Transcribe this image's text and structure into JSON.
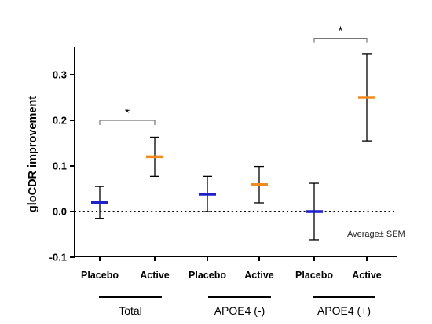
{
  "chart_data": {
    "type": "scatter",
    "title": "",
    "xlabel": "",
    "ylabel": "gloCDR improvement",
    "ylim": [
      -0.1,
      0.35
    ],
    "yticks": [
      "-0.1",
      "0.0",
      "0.1",
      "0.2",
      "0.3"
    ],
    "yticks_values": [
      -0.1,
      0.0,
      0.1,
      0.2,
      0.3
    ],
    "categories": [
      "Placebo",
      "Active",
      "Placebo",
      "Active",
      "Placebo",
      "Active"
    ],
    "groups": [
      "Total",
      "APOE4 (-)",
      "APOE4 (+)"
    ],
    "points": [
      {
        "group": "Total",
        "category": "Placebo",
        "mean": 0.02,
        "lower": -0.015,
        "upper": 0.055,
        "color": "#1f1fcc"
      },
      {
        "group": "Total",
        "category": "Active",
        "mean": 0.12,
        "lower": 0.077,
        "upper": 0.163,
        "color": "#f28a1e"
      },
      {
        "group": "APOE4 (-)",
        "category": "Placebo",
        "mean": 0.038,
        "lower": 0.0,
        "upper": 0.077,
        "color": "#1f1fcc"
      },
      {
        "group": "APOE4 (-)",
        "category": "Active",
        "mean": 0.059,
        "lower": 0.019,
        "upper": 0.099,
        "color": "#f28a1e"
      },
      {
        "group": "APOE4 (+)",
        "category": "Placebo",
        "mean": 0.0,
        "lower": -0.062,
        "upper": 0.062,
        "color": "#1f1fcc"
      },
      {
        "group": "APOE4 (+)",
        "category": "Active",
        "mean": 0.25,
        "lower": 0.155,
        "upper": 0.345,
        "color": "#f28a1e"
      }
    ],
    "reference_line": {
      "y": 0.0,
      "style": "dotted"
    },
    "annotation": "Average± SEM",
    "significance": [
      {
        "groups": "Total",
        "from": "Placebo",
        "to": "Active",
        "label": "*",
        "y": 0.2
      },
      {
        "groups": "APOE4 (+)",
        "from": "Placebo",
        "to": "Active",
        "label": "*",
        "y": 0.38
      }
    ],
    "grid": false,
    "legend": "none"
  }
}
